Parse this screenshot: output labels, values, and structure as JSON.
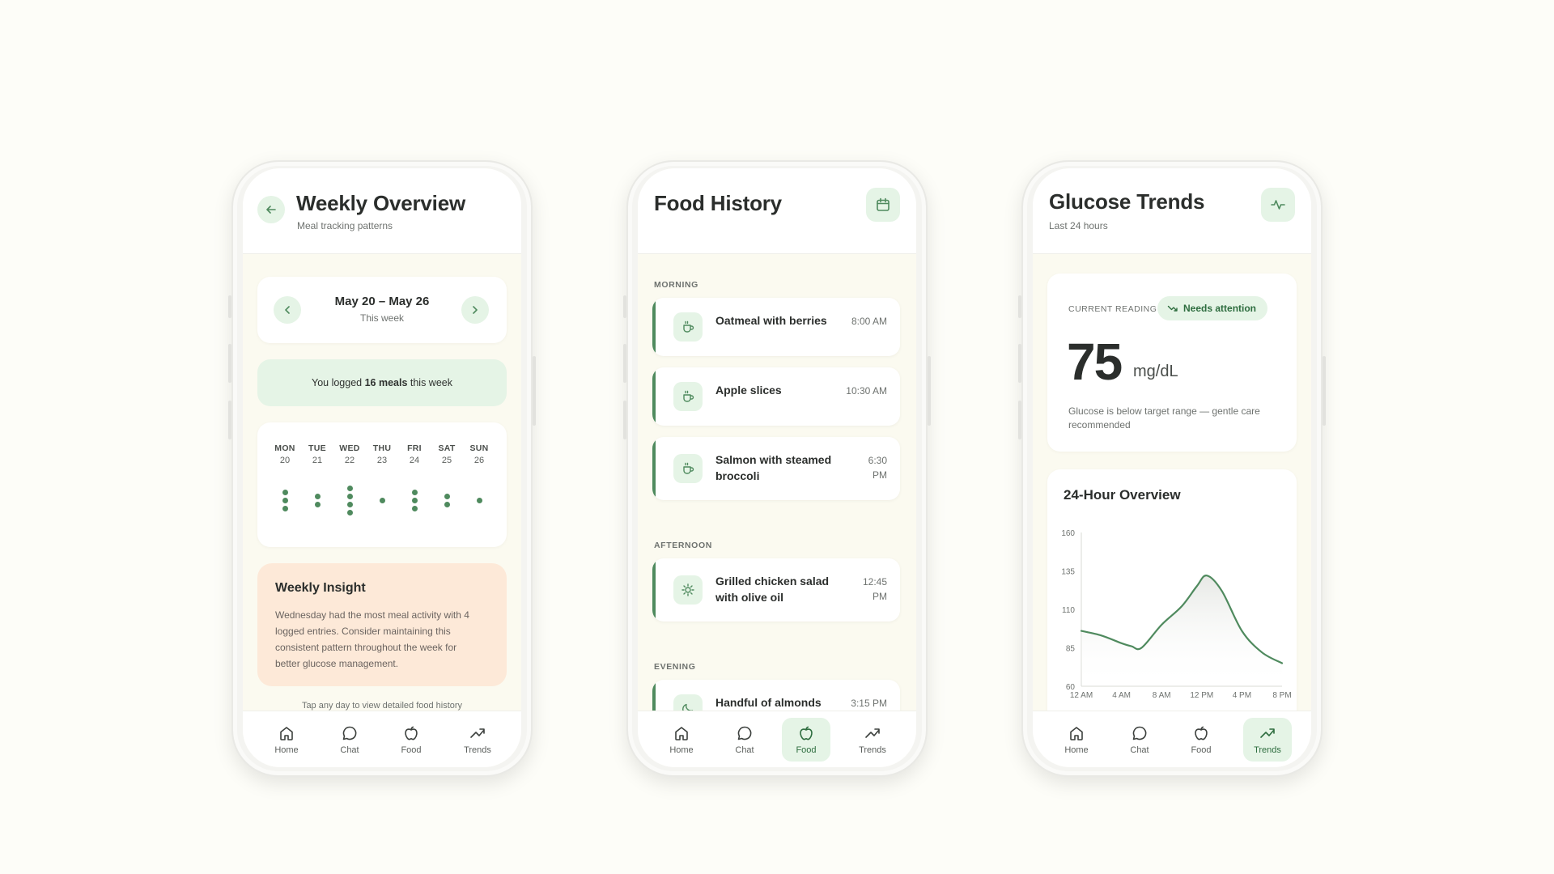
{
  "nav": {
    "home": "Home",
    "chat": "Chat",
    "food": "Food",
    "trends": "Trends"
  },
  "weekly": {
    "title": "Weekly Overview",
    "subtitle": "Meal tracking patterns",
    "range": "May 20 – May 26",
    "range_sub": "This week",
    "banner_pre": "You logged ",
    "banner_bold": "16 meals",
    "banner_post": " this week",
    "days": [
      {
        "name": "MON",
        "num": "20",
        "meals": 3
      },
      {
        "name": "TUE",
        "num": "21",
        "meals": 2
      },
      {
        "name": "WED",
        "num": "22",
        "meals": 4
      },
      {
        "name": "THU",
        "num": "23",
        "meals": 1
      },
      {
        "name": "FRI",
        "num": "24",
        "meals": 3
      },
      {
        "name": "SAT",
        "num": "25",
        "meals": 2
      },
      {
        "name": "SUN",
        "num": "26",
        "meals": 1
      }
    ],
    "insight_title": "Weekly Insight",
    "insight_body": "Wednesday had the most meal activity with 4 logged entries. Consider maintaining this consistent pattern throughout the week for better glucose management.",
    "hint": "Tap any day to view detailed food history"
  },
  "food": {
    "title": "Food History",
    "sections": {
      "morning": "MORNING",
      "afternoon": "AFTERNOON",
      "evening": "EVENING"
    },
    "meals": [
      {
        "name": "Oatmeal with berries",
        "time": "8:00 AM",
        "icon": "cup-icon"
      },
      {
        "name": "Apple slices",
        "time": "10:30 AM",
        "icon": "cup-icon"
      },
      {
        "name": "Salmon with steamed broccoli",
        "time": "6:30 PM",
        "icon": "cup-icon"
      },
      {
        "name": "Grilled chicken salad with olive oil",
        "time": "12:45 PM",
        "icon": "sun-icon"
      },
      {
        "name": "Handful of almonds",
        "time": "3:15 PM",
        "icon": "moon-icon"
      }
    ]
  },
  "glucose": {
    "title": "Glucose Trends",
    "subtitle": "Last 24 hours",
    "reading_label": "CURRENT READING",
    "status": "Needs attention",
    "value": "75",
    "unit": "mg/dL",
    "note": "Glucose is below target range — gentle care recommended",
    "chart_title": "24-Hour Overview"
  },
  "colors": {
    "accent": "#4f8a5e",
    "accent_soft": "#e5f4e6",
    "insight_bg": "#fde9d8",
    "screen_bg": "#fbfaf0"
  },
  "chart_data": {
    "type": "line",
    "title": "24-Hour Overview",
    "xlabel": "",
    "ylabel": "",
    "x_ticks": [
      "12 AM",
      "4 AM",
      "8 AM",
      "12 PM",
      "4 PM",
      "8 PM"
    ],
    "y_ticks": [
      160,
      135,
      110,
      85,
      60
    ],
    "ylim": [
      60,
      160
    ],
    "xlim": [
      0,
      20
    ],
    "grid": false,
    "series": [
      {
        "x": [
          0,
          2,
          4,
          5,
          6,
          8,
          10,
          11.5,
          12.5,
          14,
          16,
          18,
          20
        ],
        "values": [
          96,
          93,
          88,
          86,
          85,
          100,
          112,
          125,
          132,
          122,
          96,
          82,
          75
        ]
      }
    ]
  }
}
